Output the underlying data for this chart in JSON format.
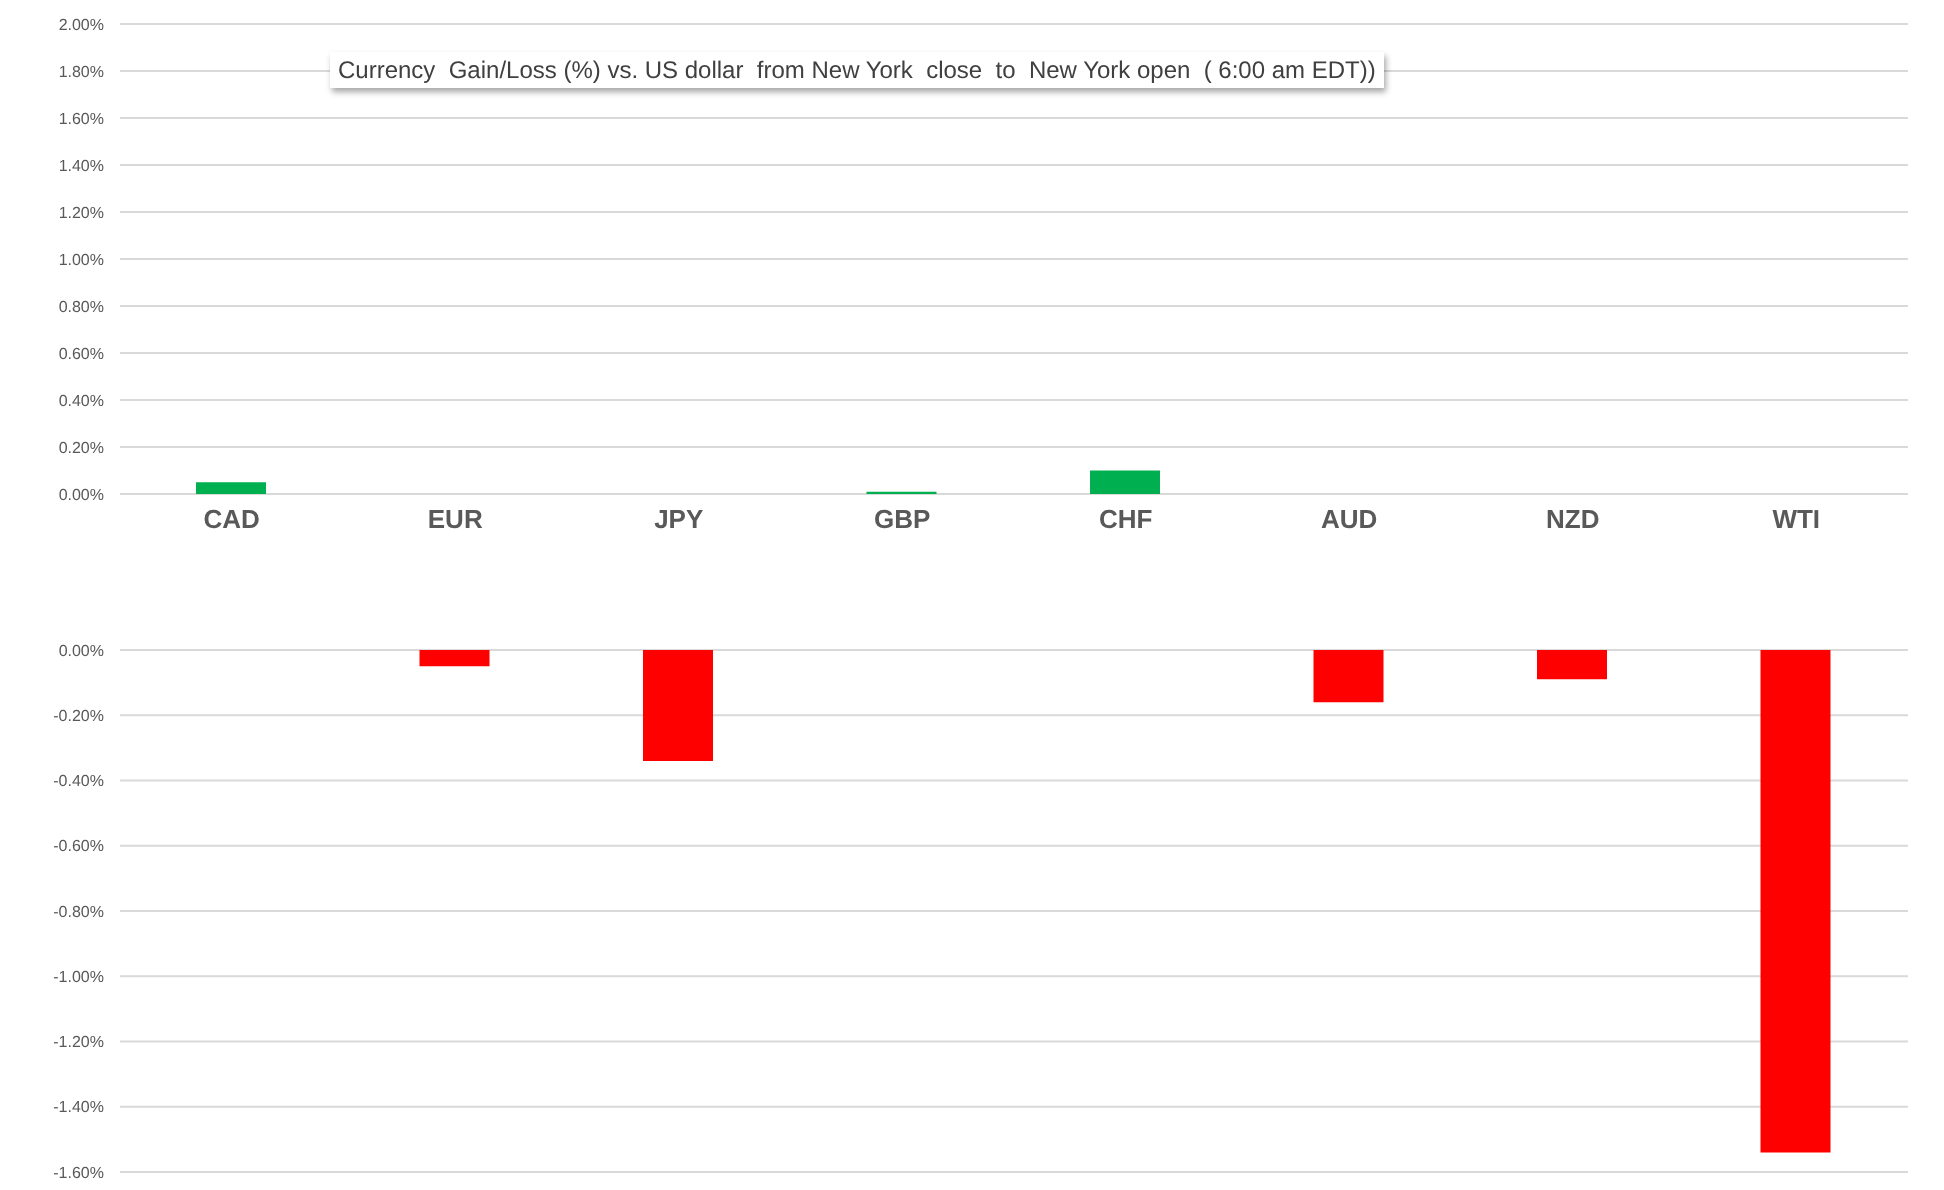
{
  "chart_data": [
    {
      "type": "bar",
      "title": "Currency  Gain/Loss (%) vs. US dollar  from New York  close  to  New York open  ( 6:00 am EDT))",
      "categories": [
        "CAD",
        "EUR",
        "JPY",
        "GBP",
        "CHF",
        "AUD",
        "NZD",
        "WTI"
      ],
      "series": [
        {
          "color": "#00b050",
          "values": [
            0.05,
            null,
            null,
            0.01,
            0.1,
            null,
            null,
            null
          ]
        }
      ],
      "ylim": [
        0,
        2
      ],
      "yticks": [
        {
          "value": 0,
          "label": "0.00%"
        },
        {
          "value": 0.2,
          "label": "0.20%"
        },
        {
          "value": 0.4,
          "label": "0.40%"
        },
        {
          "value": 0.6,
          "label": "0.60%"
        },
        {
          "value": 0.8,
          "label": "0.80%"
        },
        {
          "value": 1.0,
          "label": "1.00%"
        },
        {
          "value": 1.2,
          "label": "1.20%"
        },
        {
          "value": 1.4,
          "label": "1.40%"
        },
        {
          "value": 1.6,
          "label": "1.60%"
        },
        {
          "value": 1.8,
          "label": "1.80%"
        },
        {
          "value": 2.0,
          "label": "2.00%"
        }
      ],
      "grid": "y"
    },
    {
      "type": "bar",
      "categories": [
        null,
        null,
        null,
        null,
        null,
        null,
        null,
        null
      ],
      "series": [
        {
          "color": "#ff0000",
          "values": [
            null,
            -0.05,
            -0.34,
            null,
            null,
            -0.16,
            -0.09,
            -1.54
          ]
        }
      ],
      "ylim": [
        -1.6,
        0
      ],
      "yticks": [
        {
          "value": 0,
          "label": "0.00%"
        },
        {
          "value": -0.2,
          "label": "-0.20%"
        },
        {
          "value": -0.4,
          "label": "-0.40%"
        },
        {
          "value": -0.6,
          "label": "-0.60%"
        },
        {
          "value": -0.8,
          "label": "-0.80%"
        },
        {
          "value": -1.0,
          "label": "-1.00%"
        },
        {
          "value": -1.2,
          "label": "-1.20%"
        },
        {
          "value": -1.4,
          "label": "-1.40%"
        },
        {
          "value": -1.6,
          "label": "-1.60%"
        }
      ],
      "grid": "y",
      "tick_labels": "y"
    }
  ]
}
